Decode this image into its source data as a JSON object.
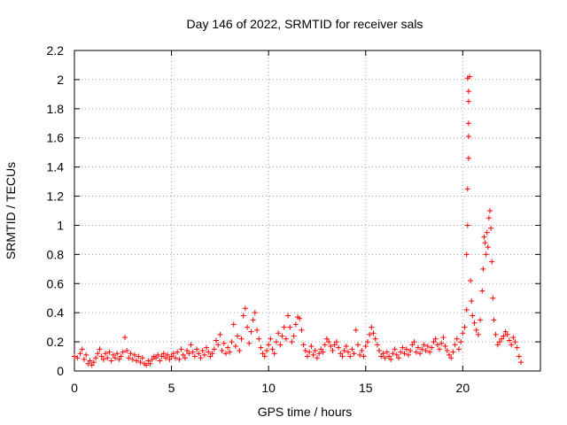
{
  "chart_data": {
    "type": "scatter",
    "title": "Day 146 of 2022, SRMTID for receiver sals",
    "xlabel": "GPS time / hours",
    "ylabel": "SRMTID / TECUs",
    "xlim": [
      0,
      24
    ],
    "ylim": [
      0,
      2.2
    ],
    "xticks": [
      0,
      5,
      10,
      15,
      20
    ],
    "xtick_labels": [
      "0",
      "5",
      "10",
      "15",
      "20"
    ],
    "yticks": [
      0,
      0.2,
      0.4,
      0.6,
      0.8,
      1,
      1.2,
      1.4,
      1.6,
      1.8,
      2,
      2.2
    ],
    "ytick_labels": [
      "0",
      "0.2",
      "0.4",
      "0.6",
      "0.8",
      "1",
      "1.2",
      "1.4",
      "1.6",
      "1.8",
      "2",
      "2.2"
    ],
    "grid": true,
    "marker": "+",
    "series": [
      {
        "name": "SRMTID",
        "color": "#ff0000",
        "points": [
          [
            0.0,
            0.1
          ],
          [
            0.15,
            0.09
          ],
          [
            0.3,
            0.12
          ],
          [
            0.4,
            0.15
          ],
          [
            0.5,
            0.08
          ],
          [
            0.6,
            0.11
          ],
          [
            0.7,
            0.05
          ],
          [
            0.8,
            0.07
          ],
          [
            0.9,
            0.04
          ],
          [
            1.0,
            0.06
          ],
          [
            1.1,
            0.09
          ],
          [
            1.2,
            0.12
          ],
          [
            1.3,
            0.15
          ],
          [
            1.4,
            0.1
          ],
          [
            1.5,
            0.08
          ],
          [
            1.6,
            0.12
          ],
          [
            1.7,
            0.09
          ],
          [
            1.8,
            0.13
          ],
          [
            1.9,
            0.07
          ],
          [
            2.0,
            0.11
          ],
          [
            2.1,
            0.09
          ],
          [
            2.2,
            0.12
          ],
          [
            2.3,
            0.08
          ],
          [
            2.4,
            0.1
          ],
          [
            2.5,
            0.13
          ],
          [
            2.6,
            0.23
          ],
          [
            2.7,
            0.14
          ],
          [
            2.8,
            0.09
          ],
          [
            2.9,
            0.12
          ],
          [
            3.0,
            0.08
          ],
          [
            3.1,
            0.11
          ],
          [
            3.2,
            0.07
          ],
          [
            3.3,
            0.1
          ],
          [
            3.4,
            0.06
          ],
          [
            3.5,
            0.09
          ],
          [
            3.6,
            0.05
          ],
          [
            3.7,
            0.04
          ],
          [
            3.8,
            0.07
          ],
          [
            3.9,
            0.05
          ],
          [
            4.0,
            0.08
          ],
          [
            4.1,
            0.1
          ],
          [
            4.2,
            0.09
          ],
          [
            4.3,
            0.11
          ],
          [
            4.4,
            0.07
          ],
          [
            4.5,
            0.1
          ],
          [
            4.6,
            0.12
          ],
          [
            4.7,
            0.09
          ],
          [
            4.8,
            0.11
          ],
          [
            4.9,
            0.08
          ],
          [
            5.0,
            0.1
          ],
          [
            5.1,
            0.12
          ],
          [
            5.2,
            0.09
          ],
          [
            5.3,
            0.13
          ],
          [
            5.4,
            0.08
          ],
          [
            5.5,
            0.15
          ],
          [
            5.6,
            0.11
          ],
          [
            5.7,
            0.09
          ],
          [
            5.8,
            0.14
          ],
          [
            5.9,
            0.12
          ],
          [
            6.0,
            0.18
          ],
          [
            6.1,
            0.13
          ],
          [
            6.2,
            0.1
          ],
          [
            6.3,
            0.15
          ],
          [
            6.4,
            0.12
          ],
          [
            6.5,
            0.09
          ],
          [
            6.6,
            0.14
          ],
          [
            6.7,
            0.11
          ],
          [
            6.8,
            0.16
          ],
          [
            6.9,
            0.13
          ],
          [
            7.0,
            0.1
          ],
          [
            7.1,
            0.12
          ],
          [
            7.2,
            0.15
          ],
          [
            7.3,
            0.21
          ],
          [
            7.4,
            0.18
          ],
          [
            7.5,
            0.25
          ],
          [
            7.6,
            0.14
          ],
          [
            7.7,
            0.19
          ],
          [
            7.8,
            0.12
          ],
          [
            7.9,
            0.16
          ],
          [
            8.0,
            0.13
          ],
          [
            8.1,
            0.2
          ],
          [
            8.2,
            0.32
          ],
          [
            8.3,
            0.17
          ],
          [
            8.4,
            0.24
          ],
          [
            8.5,
            0.14
          ],
          [
            8.6,
            0.22
          ],
          [
            8.7,
            0.38
          ],
          [
            8.8,
            0.43
          ],
          [
            8.9,
            0.3
          ],
          [
            9.0,
            0.19
          ],
          [
            9.1,
            0.27
          ],
          [
            9.2,
            0.35
          ],
          [
            9.3,
            0.4
          ],
          [
            9.4,
            0.28
          ],
          [
            9.5,
            0.22
          ],
          [
            9.6,
            0.16
          ],
          [
            9.7,
            0.12
          ],
          [
            9.8,
            0.1
          ],
          [
            9.9,
            0.14
          ],
          [
            10.0,
            0.18
          ],
          [
            10.1,
            0.22
          ],
          [
            10.2,
            0.15
          ],
          [
            10.3,
            0.12
          ],
          [
            10.4,
            0.2
          ],
          [
            10.5,
            0.26
          ],
          [
            10.6,
            0.18
          ],
          [
            10.7,
            0.24
          ],
          [
            10.8,
            0.3
          ],
          [
            10.9,
            0.22
          ],
          [
            11.0,
            0.38
          ],
          [
            11.1,
            0.3
          ],
          [
            11.2,
            0.2
          ],
          [
            11.3,
            0.24
          ],
          [
            11.4,
            0.32
          ],
          [
            11.5,
            0.37
          ],
          [
            11.6,
            0.36
          ],
          [
            11.7,
            0.28
          ],
          [
            11.8,
            0.18
          ],
          [
            11.9,
            0.14
          ],
          [
            12.0,
            0.1
          ],
          [
            12.1,
            0.13
          ],
          [
            12.2,
            0.17
          ],
          [
            12.3,
            0.11
          ],
          [
            12.4,
            0.14
          ],
          [
            12.5,
            0.09
          ],
          [
            12.6,
            0.12
          ],
          [
            12.7,
            0.15
          ],
          [
            12.8,
            0.13
          ],
          [
            12.9,
            0.18
          ],
          [
            13.0,
            0.22
          ],
          [
            13.1,
            0.2
          ],
          [
            13.2,
            0.17
          ],
          [
            13.3,
            0.14
          ],
          [
            13.4,
            0.18
          ],
          [
            13.5,
            0.2
          ],
          [
            13.6,
            0.16
          ],
          [
            13.7,
            0.12
          ],
          [
            13.8,
            0.1
          ],
          [
            13.9,
            0.14
          ],
          [
            14.0,
            0.17
          ],
          [
            14.1,
            0.13
          ],
          [
            14.2,
            0.1
          ],
          [
            14.3,
            0.15
          ],
          [
            14.4,
            0.12
          ],
          [
            14.5,
            0.28
          ],
          [
            14.6,
            0.18
          ],
          [
            14.7,
            0.11
          ],
          [
            14.8,
            0.14
          ],
          [
            14.9,
            0.1
          ],
          [
            15.0,
            0.17
          ],
          [
            15.1,
            0.2
          ],
          [
            15.2,
            0.25
          ],
          [
            15.3,
            0.3
          ],
          [
            15.4,
            0.26
          ],
          [
            15.5,
            0.22
          ],
          [
            15.6,
            0.18
          ],
          [
            15.7,
            0.14
          ],
          [
            15.8,
            0.1
          ],
          [
            15.9,
            0.12
          ],
          [
            16.0,
            0.09
          ],
          [
            16.1,
            0.13
          ],
          [
            16.2,
            0.1
          ],
          [
            16.3,
            0.08
          ],
          [
            16.4,
            0.12
          ],
          [
            16.5,
            0.15
          ],
          [
            16.6,
            0.11
          ],
          [
            16.7,
            0.09
          ],
          [
            16.8,
            0.13
          ],
          [
            16.9,
            0.16
          ],
          [
            17.0,
            0.12
          ],
          [
            17.1,
            0.15
          ],
          [
            17.2,
            0.11
          ],
          [
            17.3,
            0.14
          ],
          [
            17.4,
            0.18
          ],
          [
            17.5,
            0.2
          ],
          [
            17.6,
            0.13
          ],
          [
            17.7,
            0.16
          ],
          [
            17.8,
            0.12
          ],
          [
            17.9,
            0.15
          ],
          [
            18.0,
            0.18
          ],
          [
            18.1,
            0.14
          ],
          [
            18.2,
            0.17
          ],
          [
            18.3,
            0.13
          ],
          [
            18.4,
            0.16
          ],
          [
            18.5,
            0.2
          ],
          [
            18.6,
            0.22
          ],
          [
            18.7,
            0.18
          ],
          [
            18.8,
            0.15
          ],
          [
            18.9,
            0.19
          ],
          [
            19.0,
            0.23
          ],
          [
            19.1,
            0.17
          ],
          [
            19.2,
            0.14
          ],
          [
            19.3,
            0.11
          ],
          [
            19.4,
            0.09
          ],
          [
            19.5,
            0.13
          ],
          [
            19.6,
            0.18
          ],
          [
            19.7,
            0.22
          ],
          [
            19.8,
            0.15
          ],
          [
            19.9,
            0.2
          ],
          [
            20.0,
            0.26
          ],
          [
            20.1,
            0.3
          ],
          [
            20.2,
            0.42
          ],
          [
            20.2,
            0.8
          ],
          [
            20.25,
            1.0
          ],
          [
            20.25,
            1.25
          ],
          [
            20.3,
            1.46
          ],
          [
            20.3,
            1.61
          ],
          [
            20.3,
            1.7
          ],
          [
            20.3,
            1.85
          ],
          [
            20.3,
            1.92
          ],
          [
            20.25,
            2.01
          ],
          [
            20.35,
            2.02
          ],
          [
            20.4,
            0.62
          ],
          [
            20.45,
            0.48
          ],
          [
            20.5,
            0.38
          ],
          [
            20.6,
            0.33
          ],
          [
            20.7,
            0.28
          ],
          [
            20.8,
            0.25
          ],
          [
            20.9,
            0.35
          ],
          [
            21.0,
            0.55
          ],
          [
            21.05,
            0.7
          ],
          [
            21.1,
            0.92
          ],
          [
            21.15,
            0.88
          ],
          [
            21.2,
            0.8
          ],
          [
            21.25,
            0.95
          ],
          [
            21.3,
            0.85
          ],
          [
            21.35,
            1.05
          ],
          [
            21.4,
            1.1
          ],
          [
            21.45,
            0.98
          ],
          [
            21.5,
            0.75
          ],
          [
            21.55,
            0.5
          ],
          [
            21.6,
            0.35
          ],
          [
            21.7,
            0.25
          ],
          [
            21.8,
            0.18
          ],
          [
            21.9,
            0.2
          ],
          [
            22.0,
            0.22
          ],
          [
            22.1,
            0.24
          ],
          [
            22.2,
            0.27
          ],
          [
            22.3,
            0.25
          ],
          [
            22.4,
            0.21
          ],
          [
            22.5,
            0.18
          ],
          [
            22.6,
            0.23
          ],
          [
            22.7,
            0.2
          ],
          [
            22.8,
            0.16
          ],
          [
            22.9,
            0.1
          ],
          [
            23.0,
            0.06
          ]
        ]
      }
    ]
  }
}
